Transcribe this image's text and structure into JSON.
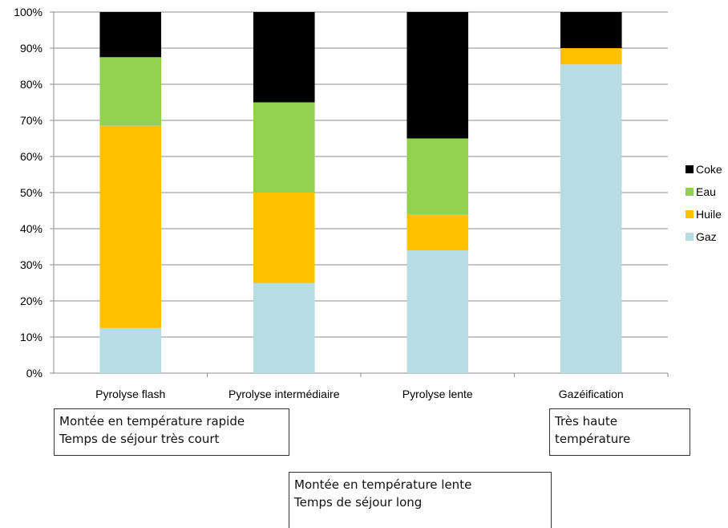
{
  "chart_data": {
    "type": "bar",
    "stacked": true,
    "categories": [
      "Pyrolyse flash",
      "Pyrolyse intermédiaire",
      "Pyrolyse lente",
      "Gazéification"
    ],
    "series": [
      {
        "name": "Gaz",
        "color": "#b7dde3",
        "values": [
          12.5,
          25,
          34,
          85.5
        ]
      },
      {
        "name": "Huile",
        "color": "#ffc000",
        "values": [
          56,
          25,
          10,
          4.5
        ]
      },
      {
        "name": "Eau",
        "color": "#92d050",
        "values": [
          19,
          25,
          21,
          0
        ]
      },
      {
        "name": "Coke",
        "color": "#000000",
        "values": [
          12.5,
          25,
          35,
          10
        ]
      }
    ],
    "ylim": [
      0,
      100
    ],
    "ytick_labels": [
      "0%",
      "10%",
      "20%",
      "30%",
      "40%",
      "50%",
      "60%",
      "70%",
      "80%",
      "90%",
      "100%"
    ],
    "grid": true,
    "legend_position": "right",
    "legend_order": [
      "Coke",
      "Eau",
      "Huile",
      "Gaz"
    ],
    "title": "",
    "xlabel": "",
    "ylabel": ""
  },
  "annotations": {
    "note1": [
      "Montée en température rapide",
      "Temps de séjour très court"
    ],
    "note2": [
      "Très haute",
      "température"
    ],
    "note3": [
      "Montée en température lente",
      "Temps de séjour long"
    ]
  }
}
